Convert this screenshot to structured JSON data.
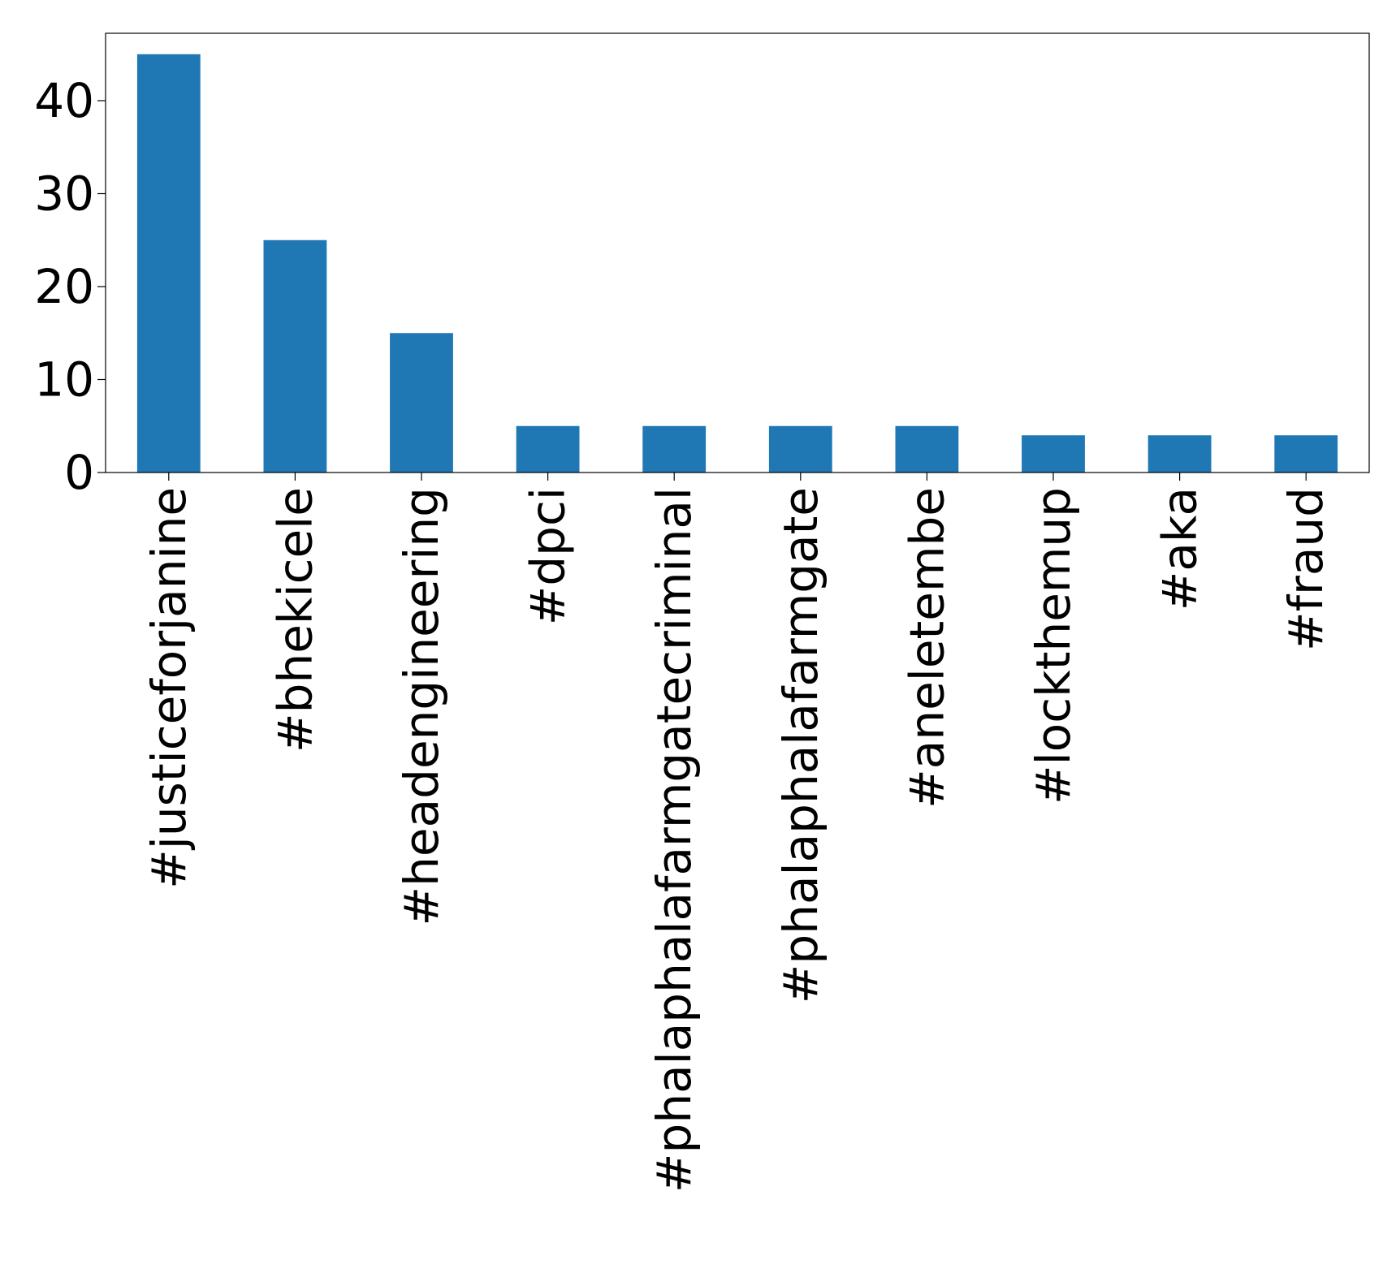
{
  "chart_data": {
    "type": "bar",
    "title": "",
    "xlabel": "",
    "ylabel": "",
    "categories": [
      "#justiceforjanine",
      "#bhekicele",
      "#headengineering",
      "#dpci",
      "#phalaphalafarmgatecriminal",
      "#phalaphalafarmgate",
      "#aneletembe",
      "#lockthemup",
      "#aka",
      "#fraud"
    ],
    "values": [
      45,
      25,
      15,
      5,
      5,
      5,
      5,
      4,
      4,
      4
    ],
    "ylim": [
      0,
      47.25
    ],
    "yticks": [
      0,
      10,
      20,
      30,
      40
    ],
    "bar_color": "#1f77b4",
    "grid": false,
    "legend": "none"
  }
}
